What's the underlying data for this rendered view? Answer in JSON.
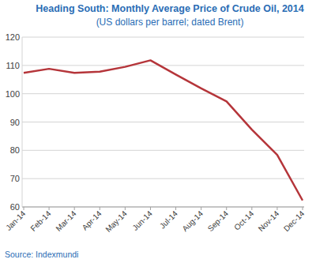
{
  "chart_data": {
    "type": "line",
    "title": "Heading South: Monthly Average Price of Crude Oil, 2014",
    "subtitle": "(US dollars per barrel; dated Brent)",
    "source": "Source: Indexmundi",
    "categories": [
      "Jan-14",
      "Feb-14",
      "Mar-14",
      "Apr-14",
      "May-14",
      "Jun-14",
      "Jul-14",
      "Aug-14",
      "Sep-14",
      "Oct-14",
      "Nov-14",
      "Dec-14"
    ],
    "values": [
      107.4,
      108.8,
      107.4,
      107.8,
      109.5,
      111.8,
      106.8,
      101.9,
      97.3,
      87.3,
      78.4,
      62.3
    ],
    "color": "#b5353a",
    "ylim": [
      60,
      120
    ],
    "yticks": [
      60,
      70,
      80,
      90,
      100,
      110,
      120
    ],
    "grid": true
  }
}
